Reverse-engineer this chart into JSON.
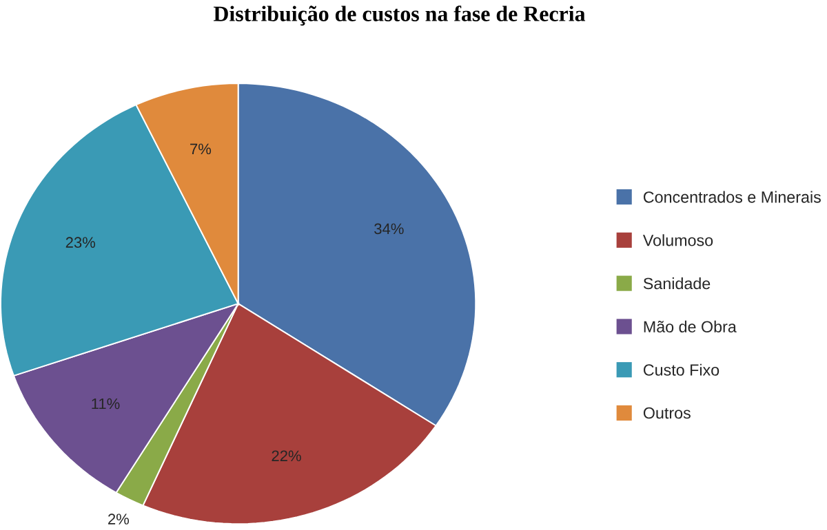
{
  "chart_data": {
    "type": "pie",
    "title": "Distribuição de custos na fase de Recria",
    "categories": [
      "Concentrados e Minerais",
      "Volumoso",
      "Sanidade",
      "Mão de Obra",
      "Custo Fixo",
      "Outros"
    ],
    "values": [
      34,
      22,
      2,
      11,
      23,
      7
    ],
    "value_labels": [
      "34%",
      "22%",
      "2%",
      "11%",
      "23%",
      "7%"
    ],
    "colors": [
      "#4a72a8",
      "#a8403c",
      "#8aaa48",
      "#6c5090",
      "#3a9ab5",
      "#e08a3c"
    ],
    "legend": "right"
  }
}
